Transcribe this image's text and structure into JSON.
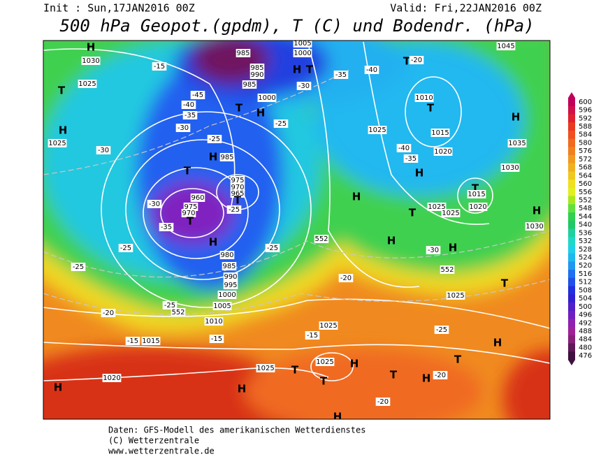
{
  "header": {
    "init": "Init : Sun,17JAN2016 00Z",
    "valid": "Valid: Fri,22JAN2016 00Z",
    "title": "500 hPa Geopot.(gpdm), T (C) und Bodendr. (hPa)"
  },
  "footer": {
    "lines": [
      "Daten: GFS-Modell des amerikanischen Wetterdienstes",
      "(C) Wetterzentrale",
      "www.wetterzentrale.de"
    ]
  },
  "scale": [
    {
      "value": 600,
      "color": "#c0005a"
    },
    {
      "value": 596,
      "color": "#d0104a"
    },
    {
      "value": 592,
      "color": "#e02030"
    },
    {
      "value": 588,
      "color": "#e83a20"
    },
    {
      "value": 584,
      "color": "#f05020"
    },
    {
      "value": 580,
      "color": "#f06a20"
    },
    {
      "value": 576,
      "color": "#f08020"
    },
    {
      "value": 572,
      "color": "#f09a20"
    },
    {
      "value": 568,
      "color": "#f0b020"
    },
    {
      "value": 564,
      "color": "#f0c820"
    },
    {
      "value": 560,
      "color": "#f0e020"
    },
    {
      "value": 556,
      "color": "#e0f020"
    },
    {
      "value": 552,
      "color": "#a8e820"
    },
    {
      "value": 548,
      "color": "#60e040"
    },
    {
      "value": 544,
      "color": "#30d050"
    },
    {
      "value": 540,
      "color": "#20c868"
    },
    {
      "value": 536,
      "color": "#20d0a0"
    },
    {
      "value": 532,
      "color": "#20d8c8"
    },
    {
      "value": 528,
      "color": "#20d0e8"
    },
    {
      "value": 524,
      "color": "#20b8f0"
    },
    {
      "value": 520,
      "color": "#2098f0"
    },
    {
      "value": 516,
      "color": "#2070f0"
    },
    {
      "value": 512,
      "color": "#2050e8"
    },
    {
      "value": 508,
      "color": "#2030e0"
    },
    {
      "value": 504,
      "color": "#3020d0"
    },
    {
      "value": 500,
      "color": "#5020c8"
    },
    {
      "value": 496,
      "color": "#7020c0"
    },
    {
      "value": 492,
      "color": "#9020b0"
    },
    {
      "value": 488,
      "color": "#a02098"
    },
    {
      "value": 484,
      "color": "#882078"
    },
    {
      "value": 480,
      "color": "#601858"
    },
    {
      "value": 476,
      "color": "#401040"
    }
  ],
  "map": {
    "labels": [
      "H",
      "1030",
      "1025",
      "T",
      "H",
      "1025",
      "-30",
      "-15",
      "-45",
      "-40",
      "-35",
      "-30",
      "-25",
      "985",
      "985",
      "990",
      "985",
      "T",
      "H",
      "1000",
      "-25",
      "H",
      "T",
      "1000",
      "1005",
      "-30",
      "-35",
      "-40",
      "T",
      "-20",
      "1045",
      "H",
      "985",
      "T",
      "975",
      "970",
      "965",
      "T",
      "-25",
      "960",
      "975",
      "970",
      "T",
      "-30",
      "-35",
      "H",
      "980",
      "985",
      "990",
      "995",
      "1000",
      "1005",
      "1010",
      "-25",
      "-25",
      "-25",
      "552",
      "-20",
      "1015",
      "-15",
      "-15",
      "1020",
      "H",
      "H",
      "1025",
      "T",
      "T",
      "H",
      "1025",
      "1025",
      "-15",
      "H",
      "T",
      "H",
      "-20",
      "T",
      "-25",
      "H",
      "T",
      "1025",
      "-20",
      "552",
      "H",
      "T",
      "H",
      "1025",
      "-40",
      "-35",
      "1010",
      "T",
      "1015",
      "1020",
      "H",
      "1035",
      "1030",
      "T",
      "1015",
      "1020",
      "1025",
      "1025",
      "H",
      "1030",
      "-30",
      "H",
      "H",
      "552",
      "-20",
      "-25"
    ]
  }
}
